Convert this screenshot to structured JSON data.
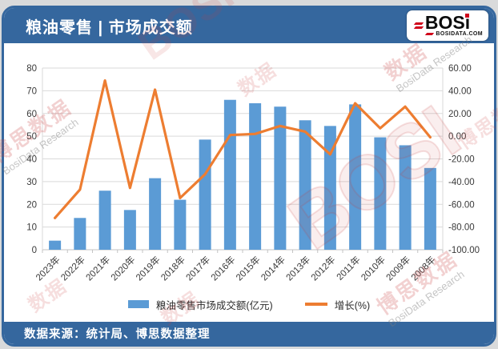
{
  "header": {
    "title": "粮油零售 | 市场成交额"
  },
  "logo": {
    "text": "BOSi",
    "domain": "BOSIDATA.COM"
  },
  "footer": {
    "source": "数据来源：统计局、博思数据整理"
  },
  "watermark": {
    "cjk": "博思数据",
    "cjk_short": "数据",
    "latin": "BosiData Research",
    "bosi": "BOSI"
  },
  "colors": {
    "header_blue": "#35679E",
    "bar_blue": "#5B9BD5",
    "line_orange": "#ED7D31",
    "gridline": "#DADADA",
    "axis_line": "#C3C3C3",
    "axis_text": "#3A3A3A",
    "logo_red": "#D0021B"
  },
  "chart_data": {
    "type": "bar+line",
    "title": "粮油零售 | 市场成交额",
    "categories": [
      "2023年",
      "2022年",
      "2021年",
      "2020年",
      "2019年",
      "2018年",
      "2017年",
      "2016年",
      "2015年",
      "2014年",
      "2013年",
      "2012年",
      "2011年",
      "2010年",
      "2009年",
      "2008年"
    ],
    "series": [
      {
        "name": "粮油零售市场成交额(亿元)",
        "type": "bar",
        "axis": "left",
        "color": "#5B9BD5",
        "values": [
          4,
          14,
          26,
          17.5,
          31.5,
          22,
          48.5,
          66,
          64.5,
          63,
          57,
          54.5,
          64,
          49.5,
          46,
          36
        ]
      },
      {
        "name": "增长(%)",
        "type": "line",
        "axis": "right",
        "color": "#ED7D31",
        "values": [
          -72,
          -47,
          49,
          -45.5,
          41,
          -54.5,
          -33.5,
          1,
          2,
          9,
          4,
          -16,
          29,
          7,
          26,
          -1
        ]
      }
    ],
    "left_axis": {
      "min": 0,
      "max": 80,
      "step": 10,
      "tick_labels": [
        "0",
        "10",
        "20",
        "30",
        "40",
        "50",
        "60",
        "70",
        "80"
      ]
    },
    "right_axis": {
      "min": -100,
      "max": 60,
      "step": 20,
      "tick_labels": [
        "-100.00",
        "-80.00",
        "-60.00",
        "-40.00",
        "-20.00",
        "0.00",
        "20.00",
        "40.00",
        "60.00"
      ]
    },
    "grid": true,
    "legend_position": "bottom"
  }
}
